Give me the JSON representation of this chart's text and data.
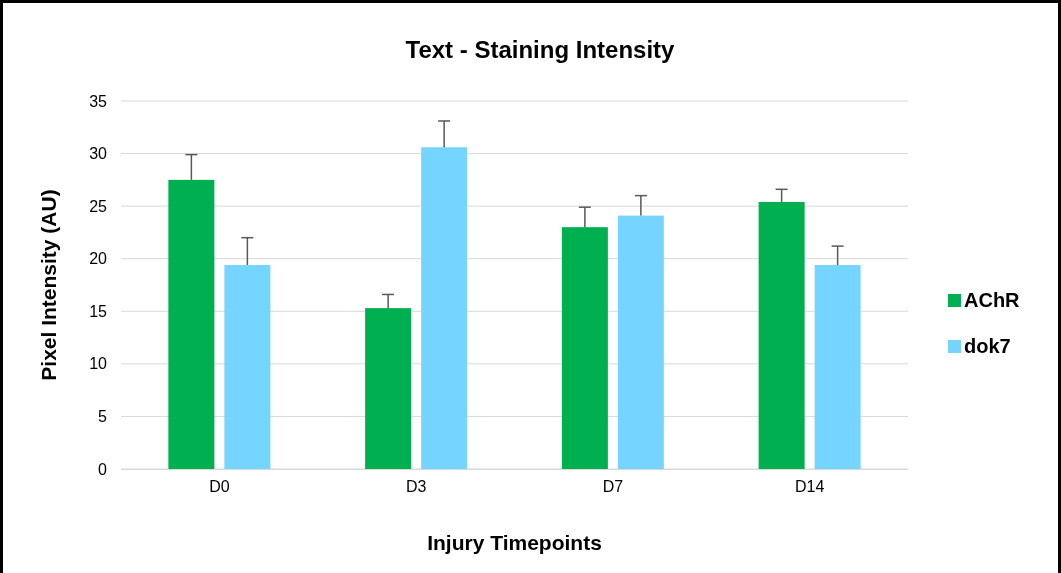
{
  "chart_data": {
    "type": "bar",
    "title": "Text - Staining Intensity",
    "xlabel": "Injury Timepoints",
    "ylabel": "Pixel Intensity (AU)",
    "categories": [
      "D0",
      "D3",
      "D7",
      "D14"
    ],
    "series": [
      {
        "name": "AChR",
        "color": "#00b050",
        "values": [
          27.5,
          15.3,
          23.0,
          25.4
        ],
        "errors": [
          [
            27.5,
            29.9
          ],
          [
            15.3,
            16.6
          ],
          [
            23.0,
            24.9
          ],
          [
            25.4,
            26.6
          ]
        ]
      },
      {
        "name": "dok7",
        "color": "#75d5ff",
        "values": [
          19.4,
          30.6,
          24.1,
          19.4
        ],
        "errors": [
          [
            19.4,
            22.0
          ],
          [
            30.6,
            33.1
          ],
          [
            24.1,
            26.0
          ],
          [
            19.4,
            21.2
          ]
        ]
      }
    ],
    "ylim": [
      0,
      35
    ],
    "yticks": [
      0,
      5,
      10,
      15,
      20,
      25,
      30,
      35
    ],
    "grid": "y",
    "legend": "right"
  }
}
